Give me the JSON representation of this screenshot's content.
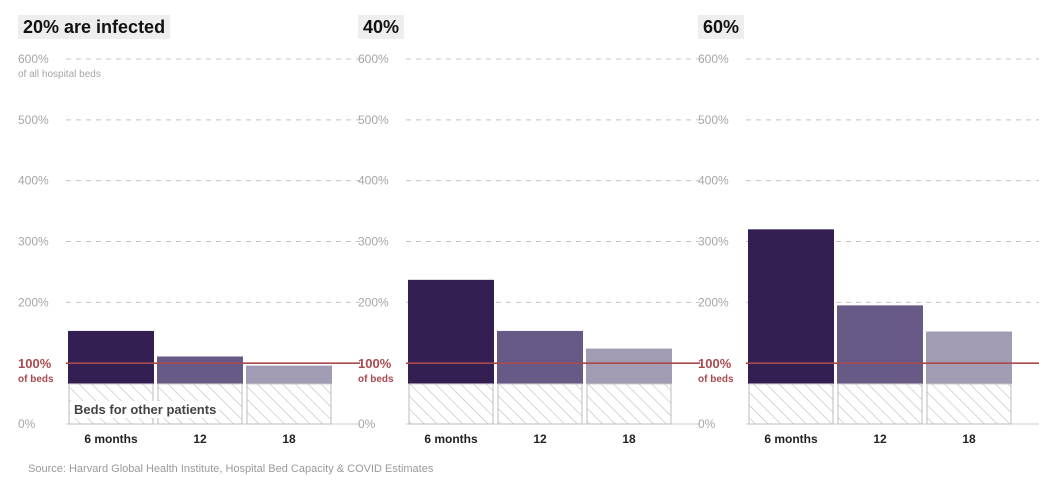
{
  "chart_data": [
    {
      "type": "bar",
      "title": "20% are infected",
      "categories": [
        "6 months",
        "12",
        "18"
      ],
      "values": [
        153,
        111,
        96
      ],
      "y_ticks": [
        "0%",
        "100%",
        "200%",
        "300%",
        "400%",
        "500%",
        "600%"
      ],
      "y_top_sublabel": "of all hospital beds",
      "capacity_label": "100%",
      "capacity_sublabel": "of beds",
      "capacity_value": 100,
      "other_patients_value": 66,
      "other_patients_label": "Beds for other patients",
      "ylim": [
        0,
        600
      ],
      "grid": true
    },
    {
      "type": "bar",
      "title": "40%",
      "categories": [
        "6 months",
        "12",
        "18"
      ],
      "values": [
        237,
        153,
        124
      ],
      "y_ticks": [
        "0%",
        "100%",
        "200%",
        "300%",
        "400%",
        "500%",
        "600%"
      ],
      "y_top_sublabel": "",
      "capacity_label": "100%",
      "capacity_sublabel": "of beds",
      "capacity_value": 100,
      "other_patients_value": 66,
      "other_patients_label": "",
      "ylim": [
        0,
        600
      ],
      "grid": true
    },
    {
      "type": "bar",
      "title": "60%",
      "categories": [
        "6 months",
        "12",
        "18"
      ],
      "values": [
        320,
        195,
        152
      ],
      "y_ticks": [
        "0%",
        "100%",
        "200%",
        "300%",
        "400%",
        "500%",
        "600%"
      ],
      "y_top_sublabel": "",
      "capacity_label": "100%",
      "capacity_sublabel": "of beds",
      "capacity_value": 100,
      "other_patients_value": 66,
      "other_patients_label": "",
      "ylim": [
        0,
        600
      ],
      "grid": true
    }
  ],
  "colors": {
    "bar_6_months": "#331f52",
    "bar_12": "#675a87",
    "bar_18": "#a19cb4",
    "capacity_line": "#a94a4e",
    "grid": "#c4c4c4",
    "tick": "#a6a6a6",
    "hatch": "#bdbdbd"
  },
  "source": "Source: Harvard Global Health Institute, Hospital Bed Capacity & COVID Estimates"
}
